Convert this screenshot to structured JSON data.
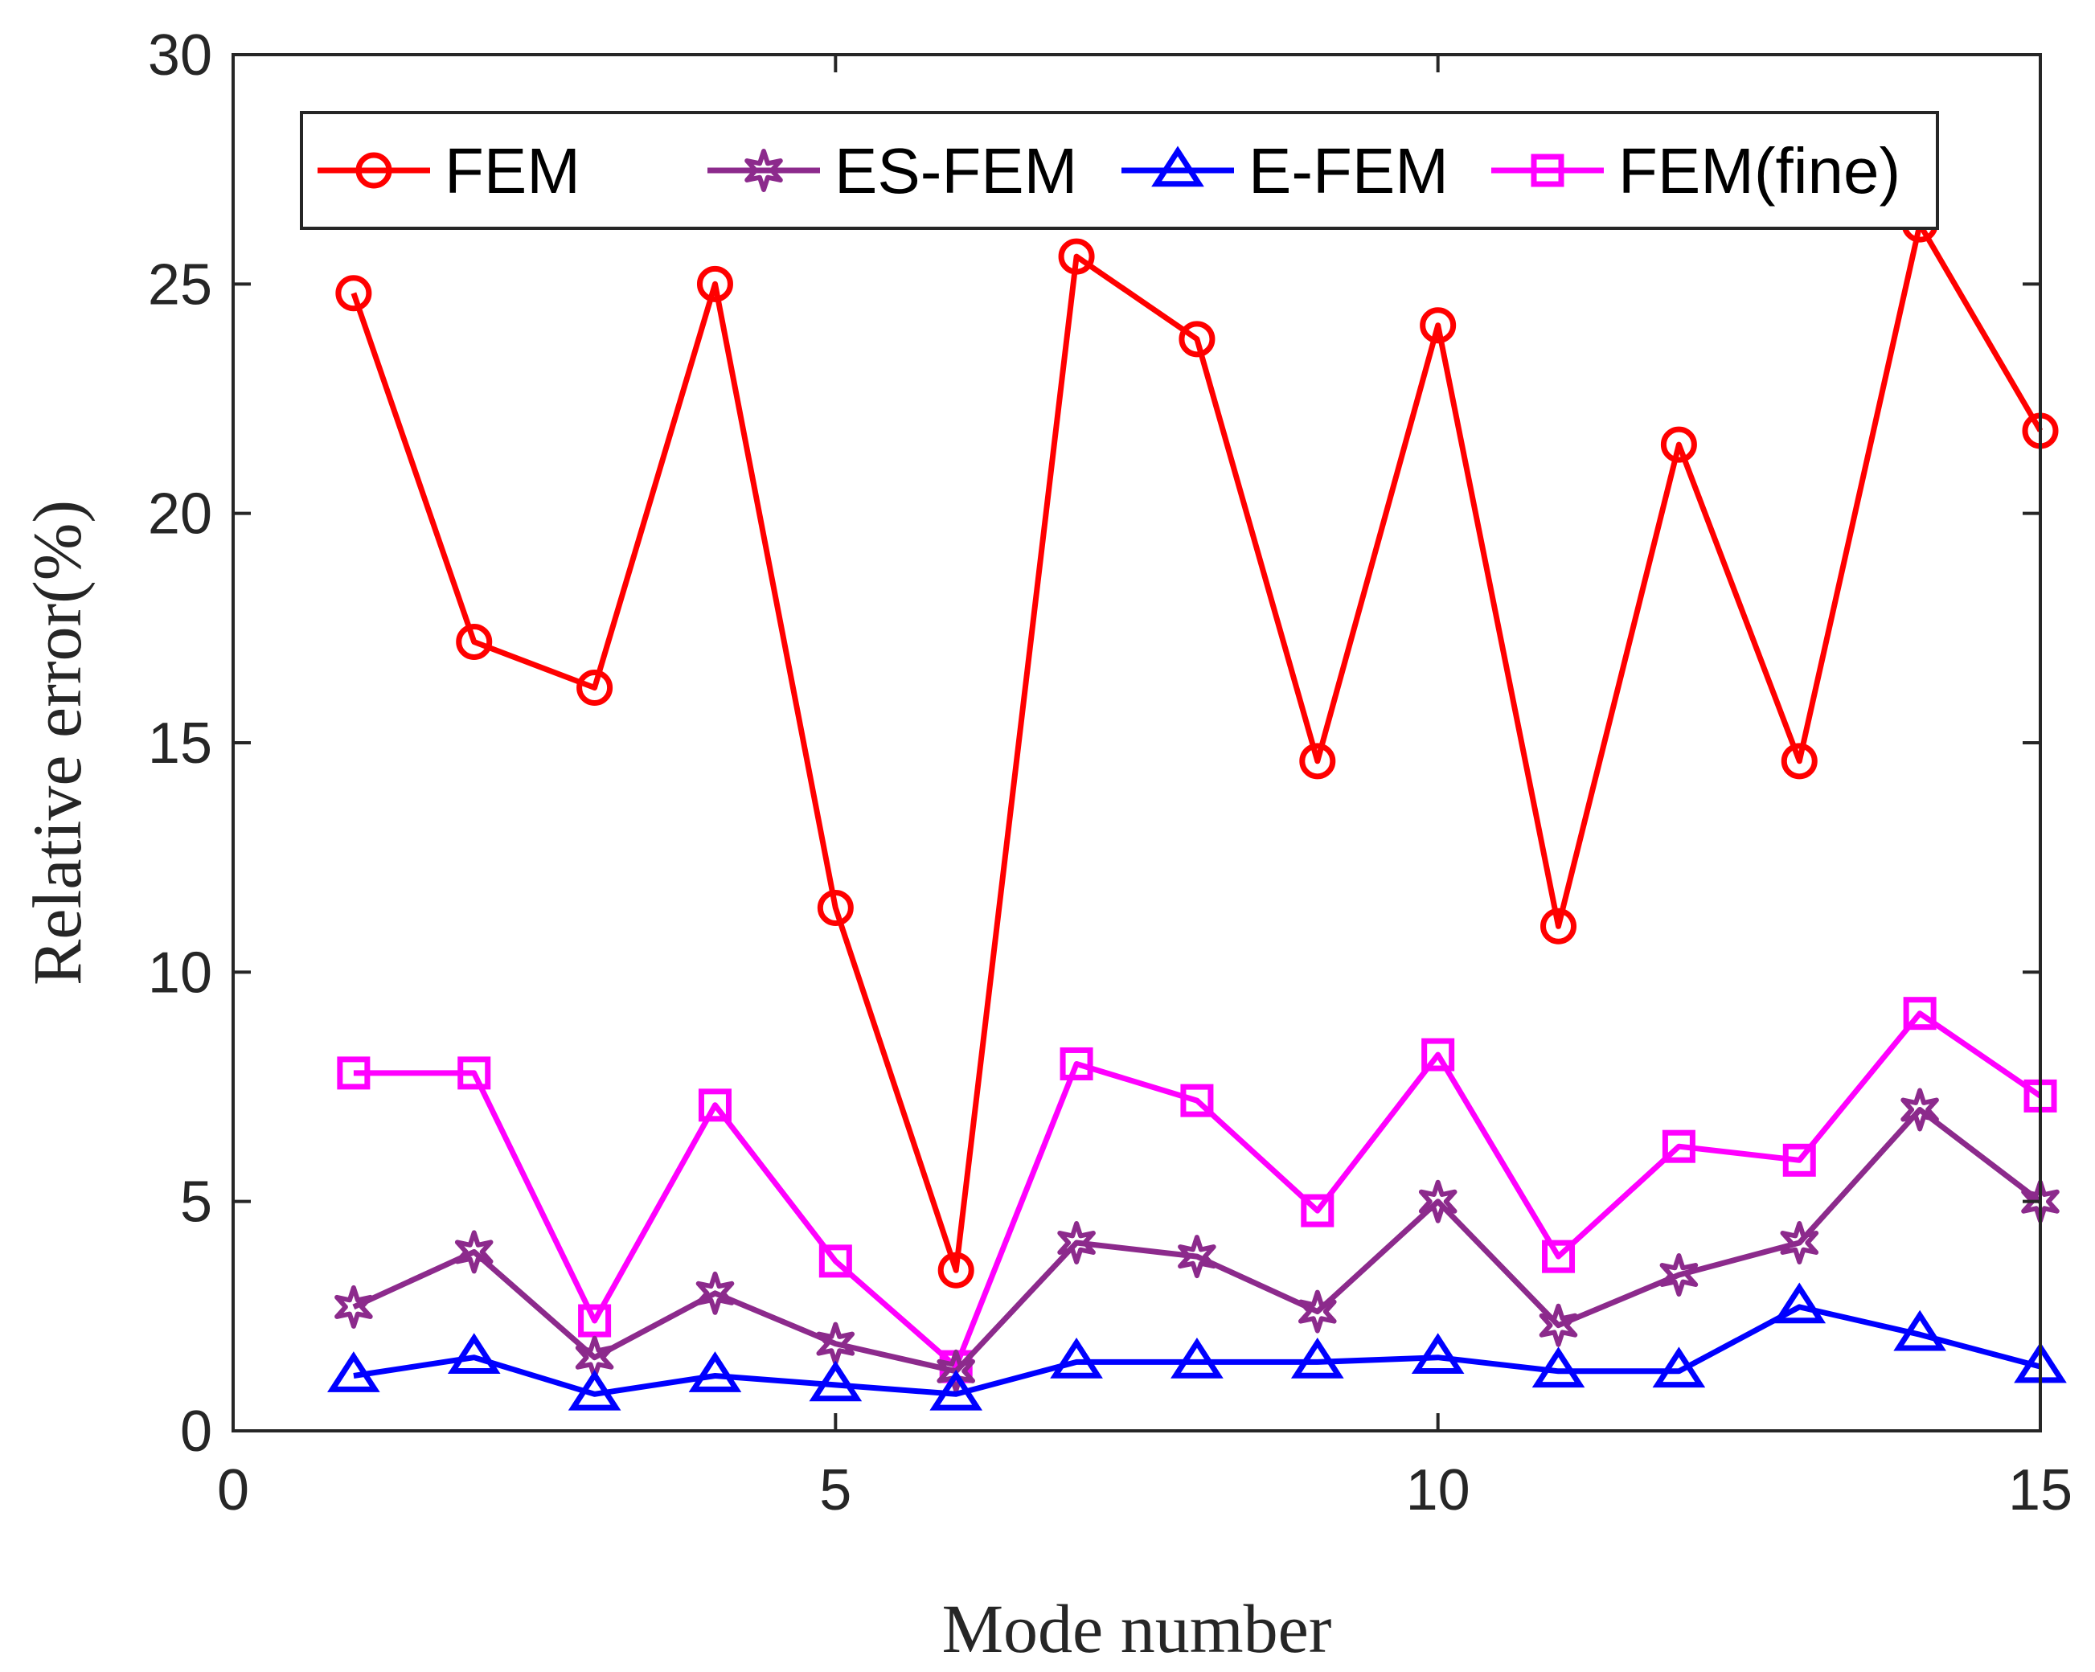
{
  "chart_data": {
    "type": "line",
    "title": "",
    "xlabel": "Mode number",
    "ylabel": "Relative error(%)",
    "xlim": [
      0,
      15
    ],
    "ylim": [
      0,
      30
    ],
    "xticks": [
      0,
      5,
      10,
      15
    ],
    "yticks": [
      0,
      5,
      10,
      15,
      20,
      25,
      30
    ],
    "legend_position": "top",
    "x": [
      1,
      2,
      3,
      4,
      5,
      6,
      7,
      8,
      9,
      10,
      11,
      12,
      13,
      14,
      15
    ],
    "series": [
      {
        "name": "FEM",
        "color": "#ff0000",
        "marker": "circle",
        "values": [
          24.8,
          17.2,
          16.2,
          25.0,
          11.4,
          3.5,
          25.6,
          23.8,
          14.6,
          24.1,
          11.0,
          21.5,
          14.6,
          26.3,
          21.8
        ]
      },
      {
        "name": "ES-FEM",
        "color": "#8c2a8c",
        "marker": "star",
        "values": [
          2.7,
          3.9,
          1.6,
          3.0,
          1.9,
          1.3,
          4.1,
          3.8,
          2.6,
          5.0,
          2.3,
          3.4,
          4.1,
          7.0,
          5.0
        ]
      },
      {
        "name": "E-FEM",
        "color": "#0000ff",
        "marker": "triangle",
        "values": [
          1.2,
          1.6,
          0.8,
          1.2,
          1.0,
          0.8,
          1.5,
          1.5,
          1.5,
          1.6,
          1.3,
          1.3,
          2.7,
          2.1,
          1.4
        ]
      },
      {
        "name": "FEM(fine)",
        "color": "#ff00ff",
        "marker": "square",
        "values": [
          7.8,
          7.8,
          2.4,
          7.1,
          3.7,
          1.4,
          8.0,
          7.2,
          4.8,
          8.2,
          3.8,
          6.2,
          5.9,
          9.1,
          7.3
        ]
      }
    ]
  }
}
